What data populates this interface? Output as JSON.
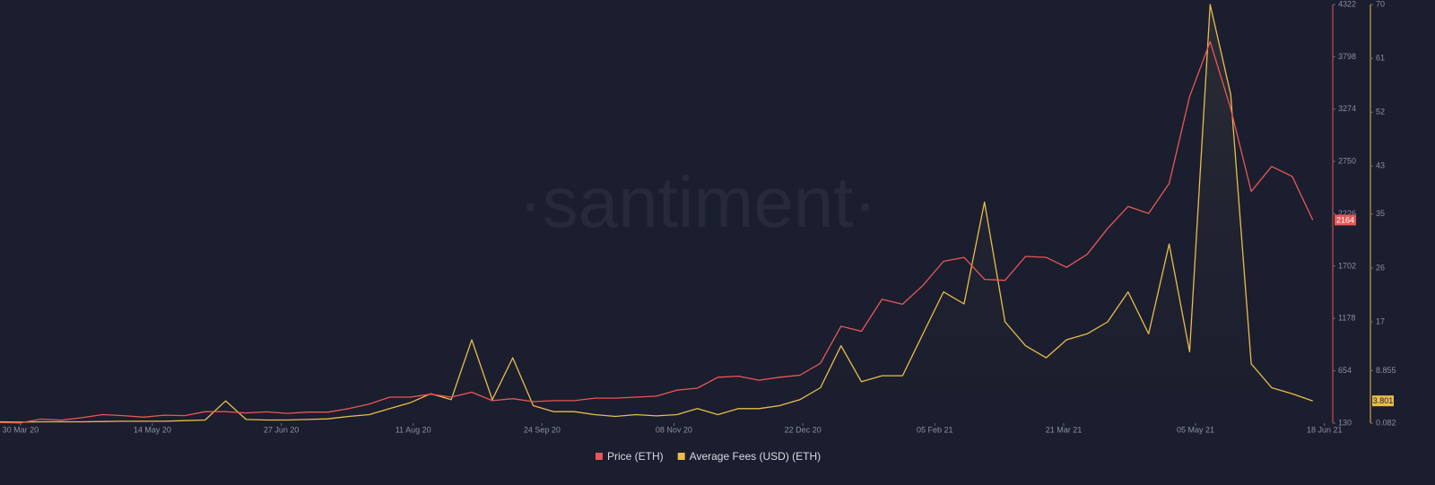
{
  "chart_data": {
    "type": "line",
    "watermark": "·santiment·",
    "x": [
      "2020-03-23",
      "2020-03-30",
      "2020-04-06",
      "2020-04-13",
      "2020-04-20",
      "2020-04-27",
      "2020-05-04",
      "2020-05-11",
      "2020-05-18",
      "2020-05-25",
      "2020-06-01",
      "2020-06-08",
      "2020-06-15",
      "2020-06-22",
      "2020-06-29",
      "2020-07-06",
      "2020-07-13",
      "2020-07-20",
      "2020-07-27",
      "2020-08-03",
      "2020-08-10",
      "2020-08-17",
      "2020-08-24",
      "2020-08-31",
      "2020-09-07",
      "2020-09-14",
      "2020-09-21",
      "2020-09-28",
      "2020-10-05",
      "2020-10-12",
      "2020-10-19",
      "2020-10-26",
      "2020-11-02",
      "2020-11-09",
      "2020-11-16",
      "2020-11-23",
      "2020-11-30",
      "2020-12-07",
      "2020-12-14",
      "2020-12-21",
      "2020-12-28",
      "2021-01-04",
      "2021-01-11",
      "2021-01-18",
      "2021-01-25",
      "2021-02-01",
      "2021-02-08",
      "2021-02-15",
      "2021-02-22",
      "2021-03-01",
      "2021-03-08",
      "2021-03-15",
      "2021-03-22",
      "2021-03-29",
      "2021-04-05",
      "2021-04-12",
      "2021-04-19",
      "2021-04-26",
      "2021-05-03",
      "2021-05-10",
      "2021-05-17",
      "2021-05-24",
      "2021-05-31",
      "2021-06-07",
      "2021-06-14"
    ],
    "xlim": [
      "2020-03-23",
      "2021-06-19"
    ],
    "xticks": [
      {
        "value": "2020-03-30",
        "label": "30 Mar 20"
      },
      {
        "value": "2020-05-14",
        "label": "14 May 20"
      },
      {
        "value": "2020-06-27",
        "label": "27 Jun 20"
      },
      {
        "value": "2020-08-11",
        "label": "11 Aug 20"
      },
      {
        "value": "2020-09-24",
        "label": "24 Sep 20"
      },
      {
        "value": "2020-11-08",
        "label": "08 Nov 20"
      },
      {
        "value": "2020-12-22",
        "label": "22 Dec 20"
      },
      {
        "value": "2021-02-05",
        "label": "05 Feb 21"
      },
      {
        "value": "2021-03-21",
        "label": "21 Mar 21"
      },
      {
        "value": "2021-05-05",
        "label": "05 May 21"
      },
      {
        "value": "2021-06-18",
        "label": "18 Jun 21"
      }
    ],
    "ylim": [
      130,
      4322
    ],
    "yticks": [
      130,
      654,
      1178,
      1702,
      2226,
      2750,
      3274,
      3798,
      4322
    ],
    "y2lim": [
      0.082,
      70
    ],
    "y2ticks": [
      0.082,
      8.855,
      17,
      26,
      35,
      43,
      52,
      61,
      70
    ],
    "series": [
      {
        "name": "Price (ETH)",
        "color": "#e85757",
        "values": [
          135,
          133,
          170,
          160,
          185,
          215,
          205,
          190,
          210,
          205,
          245,
          245,
          232,
          243,
          228,
          240,
          240,
          275,
          320,
          390,
          390,
          420,
          390,
          440,
          355,
          375,
          345,
          355,
          355,
          380,
          380,
          390,
          400,
          460,
          480,
          590,
          600,
          560,
          590,
          610,
          730,
          1100,
          1050,
          1370,
          1320,
          1510,
          1750,
          1790,
          1570,
          1560,
          1800,
          1790,
          1690,
          1820,
          2080,
          2300,
          2230,
          2530,
          3400,
          3950,
          3280,
          2450,
          2700,
          2600,
          2164
        ]
      },
      {
        "name": "Average Fees (USD) (ETH)",
        "color": "#e9bd4c",
        "axis": "y2",
        "values": [
          0.3,
          0.25,
          0.3,
          0.3,
          0.3,
          0.35,
          0.4,
          0.4,
          0.4,
          0.5,
          0.6,
          3.8,
          0.7,
          0.6,
          0.6,
          0.7,
          0.8,
          1.2,
          1.5,
          2.5,
          3.5,
          5,
          4,
          14,
          4,
          11,
          3,
          2,
          2,
          1.5,
          1.2,
          1.5,
          1.3,
          1.5,
          2.5,
          1.5,
          2.5,
          2.5,
          3,
          4,
          6,
          13,
          7,
          8,
          8,
          15,
          22,
          20,
          37,
          17,
          13,
          11,
          14,
          15,
          17,
          22,
          15,
          30,
          12,
          70,
          55,
          10,
          6,
          5,
          3.801
        ]
      }
    ]
  }
}
